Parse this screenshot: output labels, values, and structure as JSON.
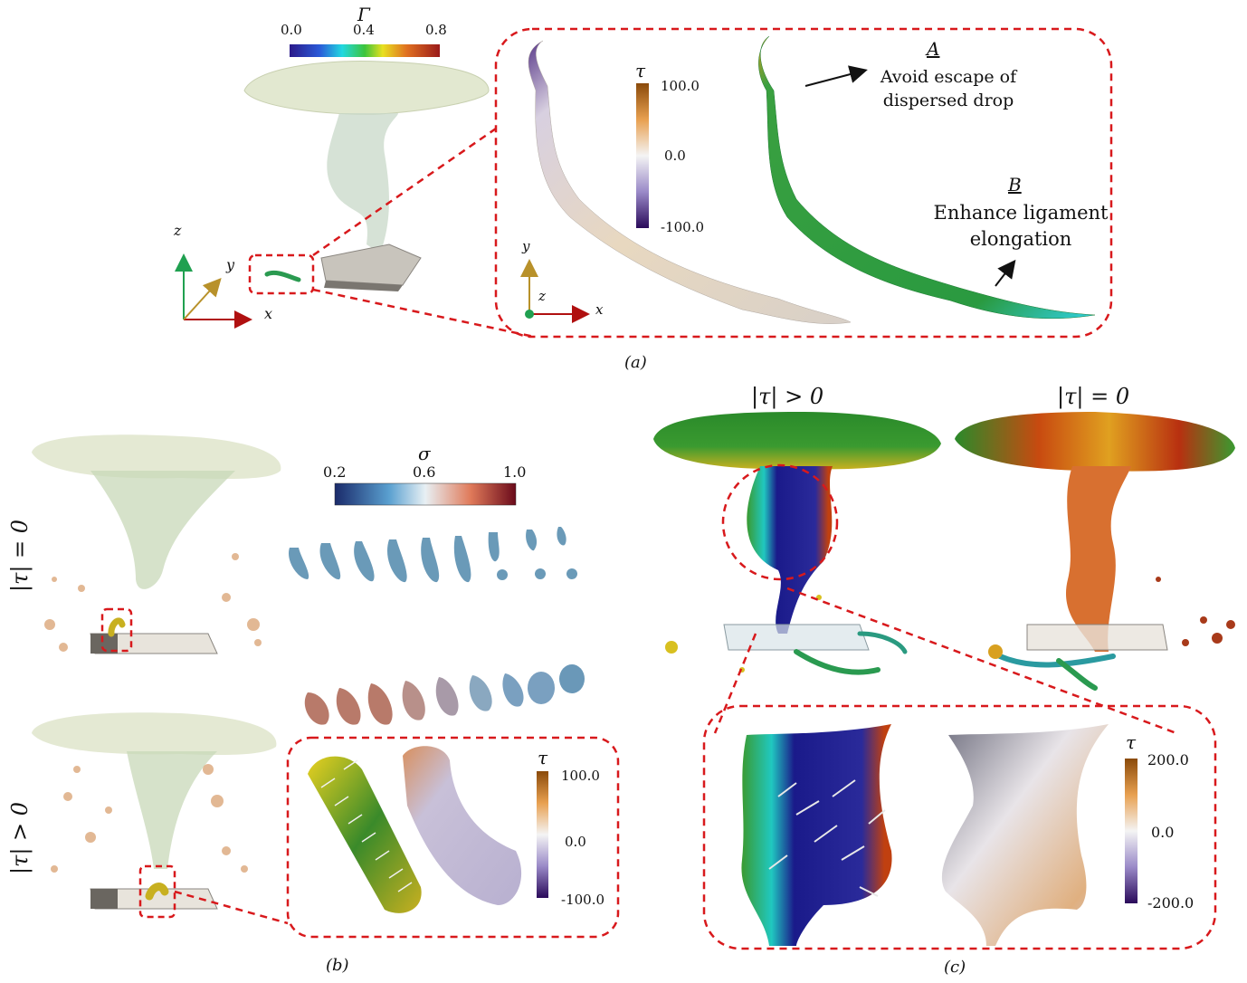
{
  "panel_a": {
    "caption": "(a)",
    "gamma_colorbar": {
      "symbol": "Γ",
      "ticks": [
        "0.0",
        "0.4",
        "0.8"
      ]
    },
    "tau_colorbar": {
      "symbol": "τ",
      "ticks": [
        "100.0",
        "0.0",
        "-100.0"
      ]
    },
    "axes_main": {
      "z": "z",
      "y": "y",
      "x": "x"
    },
    "axes_inset": {
      "y": "y",
      "z": "z",
      "x": "x"
    },
    "annotation_a": {
      "letter": "A",
      "line1": "Avoid escape of",
      "line2": "dispersed drop"
    },
    "annotation_b": {
      "letter": "B",
      "line1": "Enhance ligament",
      "line2": "elongation"
    }
  },
  "panel_b": {
    "caption": "(b)",
    "row_top_label": "|τ| = 0",
    "row_bottom_label": "|τ| > 0",
    "sigma_colorbar": {
      "symbol": "σ",
      "ticks": [
        "0.2",
        "0.6",
        "1.0"
      ]
    },
    "tau_colorbar": {
      "symbol": "τ",
      "ticks": [
        "100.0",
        "0.0",
        "-100.0"
      ]
    }
  },
  "panel_c": {
    "caption": "(c)",
    "left_title": "|τ| > 0",
    "right_title": "|τ| = 0",
    "tau_colorbar": {
      "symbol": "τ",
      "ticks": [
        "200.0",
        "0.0",
        "-200.0"
      ]
    }
  },
  "colors": {
    "inset_border": "#d8191c",
    "axis_x": "#b01010",
    "axis_y": "#b8912a",
    "axis_z": "#20a050"
  }
}
